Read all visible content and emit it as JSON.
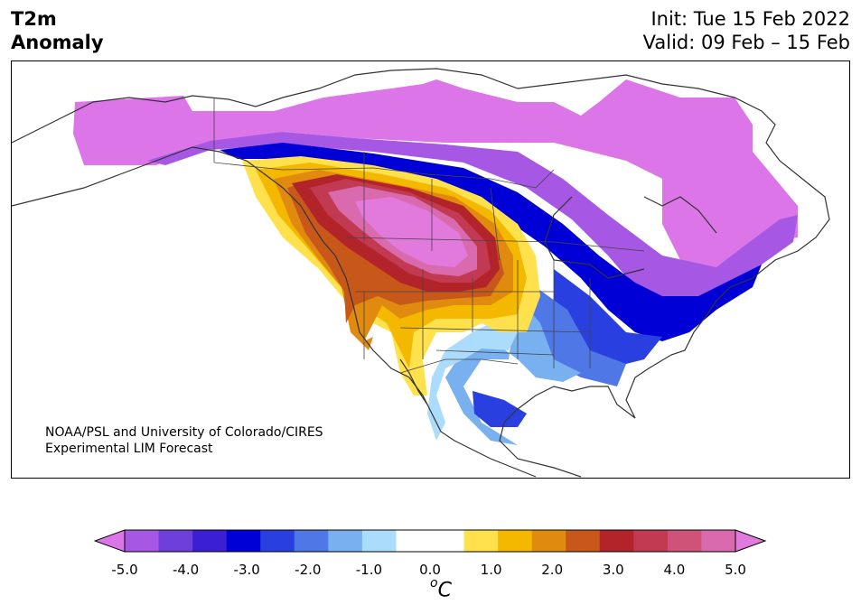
{
  "title": {
    "line1": "T2m",
    "line2": "Anomaly"
  },
  "header": {
    "init": "Init: Tue 15 Feb 2022",
    "valid": "Valid: 09 Feb – 15 Feb"
  },
  "credit": {
    "line1": "NOAA/PSL and University of Colorado/CIRES",
    "line2": "Experimental LIM Forecast"
  },
  "colorbar": {
    "unit_sup": "o",
    "unit_base": "C",
    "colors": [
      "#dc75e8",
      "#a657e3",
      "#6f3fdc",
      "#3b1fd2",
      "#0000d6",
      "#2a3fe0",
      "#4f78e6",
      "#78b0f0",
      "#acdcfb",
      "#ffffff",
      "#ffffff",
      "#ffe14d",
      "#f4b800",
      "#e08a10",
      "#c8581a",
      "#b2242a",
      "#c23a52",
      "#cf5278",
      "#d96aae",
      "#e279dc"
    ],
    "ticks": [
      "-5.0",
      "-4.0",
      "-3.0",
      "-2.0",
      "-1.0",
      "0.0",
      "1.0",
      "2.0",
      "3.0",
      "4.0",
      "5.0"
    ]
  }
}
